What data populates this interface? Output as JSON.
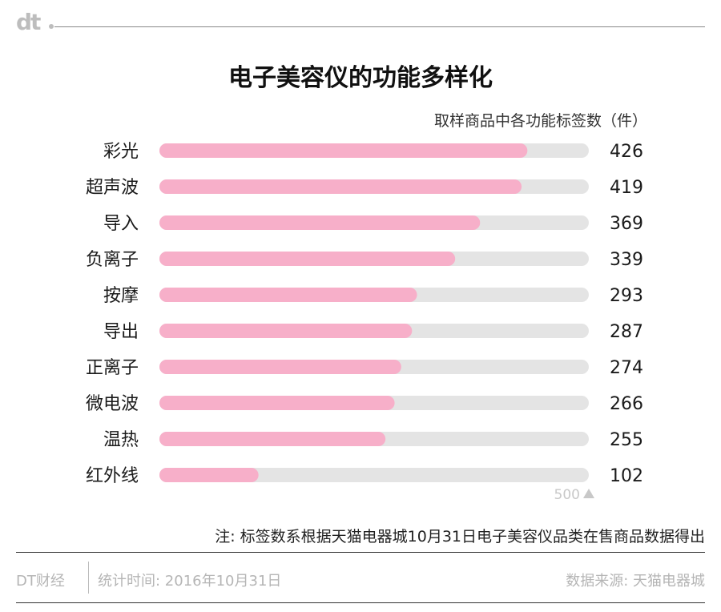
{
  "brand": {
    "logo": "dt"
  },
  "header": {
    "title": "电子美容仪的功能多样化",
    "unit_note": "取样商品中各功能标签数（件）"
  },
  "chart_data": {
    "type": "bar",
    "orientation": "horizontal",
    "title": "电子美容仪的功能多样化",
    "ylabel": "取样商品中各功能标签数（件）",
    "categories": [
      "彩光",
      "超声波",
      "导入",
      "负离子",
      "按摩",
      "导出",
      "正离子",
      "微电波",
      "温热",
      "红外线"
    ],
    "values": [
      426,
      419,
      369,
      339,
      293,
      287,
      274,
      266,
      255,
      102
    ],
    "xlim": [
      0,
      500
    ],
    "scale_label": "500",
    "grid": false,
    "colors": {
      "bar": "#f7afc9",
      "track": "#e4e4e4",
      "scale": "#c8c8c8"
    }
  },
  "footer": {
    "note": "注: 标签数系根据天猫电器城10月31日电子美容仪品类在售商品数据得出",
    "brand": "DT财经",
    "date": "统计时间: 2016年10月31日",
    "source": "数据来源: 天猫电器城"
  }
}
